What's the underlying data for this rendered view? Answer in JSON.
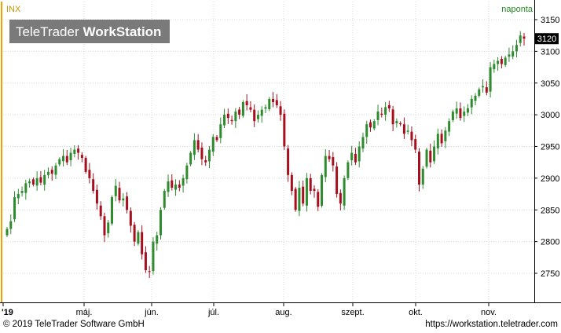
{
  "symbol": "INX",
  "period_label": "naponta",
  "watermark": {
    "brand": "TeleTrader",
    "product": "WorkStation"
  },
  "last_price_label": "3120",
  "footer": {
    "copyright": "© 2019 TeleTrader Software GmbH",
    "url": "https://workstation.teletrader.com"
  },
  "colors": {
    "up": "#2e8b2e",
    "down": "#a50f1e",
    "grid": "#d7d7d7",
    "accent": "#f5a000",
    "label_bg": "#000000"
  },
  "chart_data": {
    "type": "candlestick",
    "title": "INX",
    "x_axis_labels": [
      "'19",
      "máj.",
      "jún.",
      "júl.",
      "aug.",
      "szept.",
      "okt.",
      "nov."
    ],
    "y_axis_labels": [
      "2750",
      "2800",
      "2850",
      "2900",
      "2950",
      "3000",
      "3050",
      "3100",
      "3150"
    ],
    "ylim": [
      2715,
      3160
    ],
    "grid": true,
    "closes": [
      2820,
      2832,
      2870,
      2875,
      2880,
      2892,
      2895,
      2890,
      2900,
      2893,
      2905,
      2910,
      2907,
      2920,
      2930,
      2935,
      2925,
      2940,
      2945,
      2940,
      2932,
      2910,
      2900,
      2880,
      2860,
      2840,
      2810,
      2830,
      2870,
      2888,
      2865,
      2868,
      2850,
      2825,
      2800,
      2815,
      2780,
      2755,
      2752,
      2800,
      2810,
      2850,
      2880,
      2895,
      2885,
      2890,
      2885,
      2900,
      2920,
      2940,
      2960,
      2945,
      2930,
      2925,
      2945,
      2965,
      2960,
      2985,
      3000,
      2995,
      2990,
      3005,
      3000,
      3020,
      3015,
      3008,
      2990,
      3000,
      3008,
      3012,
      3025,
      3020,
      3015,
      3000,
      2950,
      2905,
      2880,
      2850,
      2885,
      2860,
      2900,
      2880,
      2880,
      2855,
      2905,
      2935,
      2930,
      2920,
      2875,
      2860,
      2900,
      2925,
      2940,
      2925,
      2950,
      2965,
      2985,
      2980,
      2990,
      3005,
      3000,
      3012,
      3010,
      2985,
      2990,
      2985,
      2970,
      2975,
      2960,
      2945,
      2890,
      2915,
      2945,
      2925,
      2950,
      2970,
      2955,
      2975,
      2990,
      3005,
      3010,
      2995,
      3005,
      3010,
      3025,
      3030,
      3040,
      3045,
      3035,
      3075,
      3080,
      3085,
      3080,
      3090,
      3095,
      3100,
      3110,
      3125,
      3120
    ]
  }
}
